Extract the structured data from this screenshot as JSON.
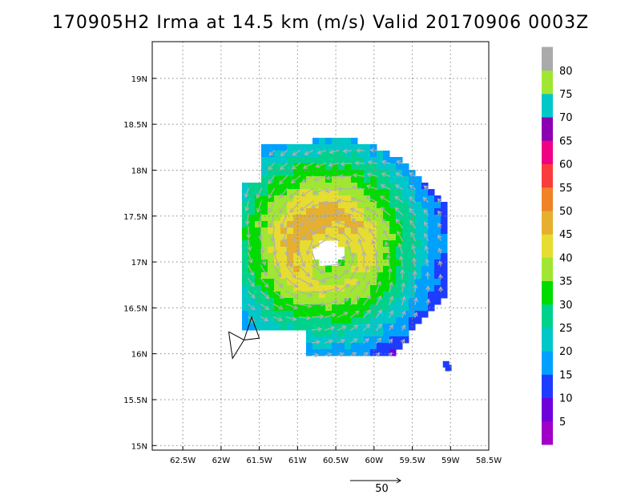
{
  "title": "170905H2 Irma at 14.5 km (m/s) Valid 20170906  0003Z",
  "chart_data": {
    "type": "heatmap",
    "title": "170905H2 Irma at 14.5 km (m/s) Valid 20170906  0003Z",
    "x_ticks": [
      {
        "value": -62.5,
        "label": "62.5W"
      },
      {
        "value": -62.0,
        "label": "62W"
      },
      {
        "value": -61.5,
        "label": "61.5W"
      },
      {
        "value": -61.0,
        "label": "61W"
      },
      {
        "value": -60.5,
        "label": "60.5W"
      },
      {
        "value": -60.0,
        "label": "60W"
      },
      {
        "value": -59.5,
        "label": "59.5W"
      },
      {
        "value": -59.0,
        "label": "59W"
      },
      {
        "value": -58.5,
        "label": "58.5W"
      }
    ],
    "y_ticks": [
      {
        "value": 15.0,
        "label": "15N"
      },
      {
        "value": 15.5,
        "label": "15.5N"
      },
      {
        "value": 16.0,
        "label": "16N"
      },
      {
        "value": 16.5,
        "label": "16.5N"
      },
      {
        "value": 17.0,
        "label": "17N"
      },
      {
        "value": 17.5,
        "label": "17.5N"
      },
      {
        "value": 18.0,
        "label": "18N"
      },
      {
        "value": 18.5,
        "label": "18.5N"
      },
      {
        "value": 19.0,
        "label": "19N"
      }
    ],
    "xlim": [
      -62.9,
      -58.5
    ],
    "ylim": [
      14.95,
      19.4
    ],
    "grid": true,
    "colorbar": {
      "levels": [
        "5",
        "10",
        "15",
        "20",
        "25",
        "30",
        "35",
        "40",
        "45",
        "50",
        "55",
        "60",
        "65",
        "70",
        "75",
        "80"
      ],
      "colors": [
        "#a000c8",
        "#6e00dc",
        "#1e3cff",
        "#00a0ff",
        "#00c8c8",
        "#00d28c",
        "#00dc00",
        "#a0e632",
        "#e6dc32",
        "#e6af2d",
        "#f08228",
        "#fa3c3c",
        "#f00082",
        "#8c00b4",
        "#00c8c8",
        "#a0e632",
        "#aaaaaa"
      ]
    },
    "center": {
      "lon": -60.6,
      "lat": 17.1
    },
    "eye_radius_deg": 0.2,
    "rmw_deg": 0.5,
    "max_wind": 45,
    "reference_vector": {
      "label": "50",
      "value": 50
    },
    "wind_field": "cyclonic"
  }
}
